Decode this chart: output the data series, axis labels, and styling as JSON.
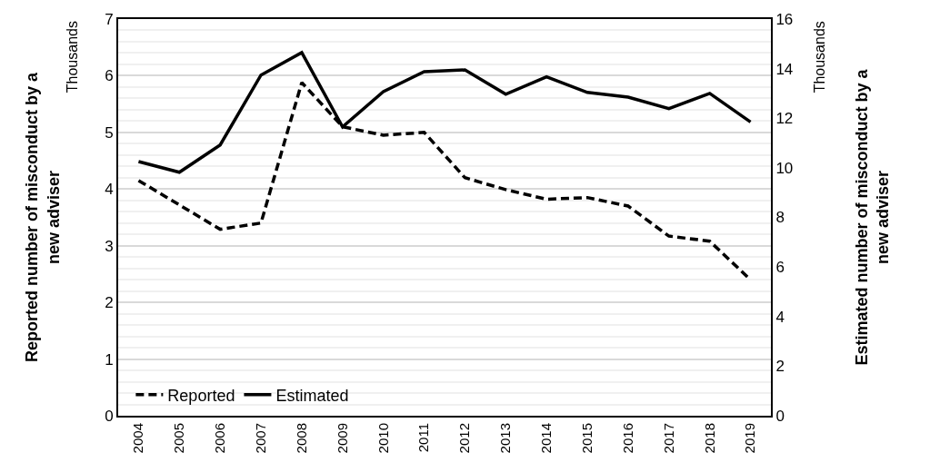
{
  "chart_data": {
    "type": "line",
    "ylabel": "Reported number of misconduct by a new adviser",
    "y2label": "Estimated number of misconduct by a new adviser",
    "annotations": [
      "Thousands",
      "Thousands"
    ],
    "categories": [
      "2004",
      "2005",
      "2006",
      "2007",
      "2008",
      "2009",
      "2010",
      "2011",
      "2012",
      "2013",
      "2014",
      "2015",
      "2016",
      "2017",
      "2018",
      "2019"
    ],
    "series": [
      {
        "name": "Reported",
        "color": "#000000",
        "line_style": "dashed",
        "values": [
          4.15,
          3.72,
          3.29,
          3.4,
          5.88,
          5.1,
          4.95,
          5.0,
          4.2,
          3.99,
          3.82,
          3.85,
          3.7,
          3.17,
          3.08,
          2.4
        ]
      },
      {
        "name": "Estimated",
        "color": "#000000",
        "line_style": "solid",
        "axis": "y2",
        "values": [
          10.25,
          9.82,
          10.92,
          13.74,
          14.65,
          11.65,
          13.07,
          13.88,
          13.95,
          12.97,
          13.67,
          13.04,
          12.85,
          12.39,
          13.0,
          11.85
        ]
      }
    ],
    "ylim": [
      0,
      7
    ],
    "yticks": [
      0,
      1,
      2,
      3,
      4,
      5,
      6,
      7
    ],
    "y2lim": [
      0,
      16
    ],
    "y2ticks": [
      0,
      2,
      4,
      6,
      8,
      10,
      12,
      14,
      16
    ],
    "grid": "y",
    "legend": "bottom left",
    "marker": "none"
  }
}
